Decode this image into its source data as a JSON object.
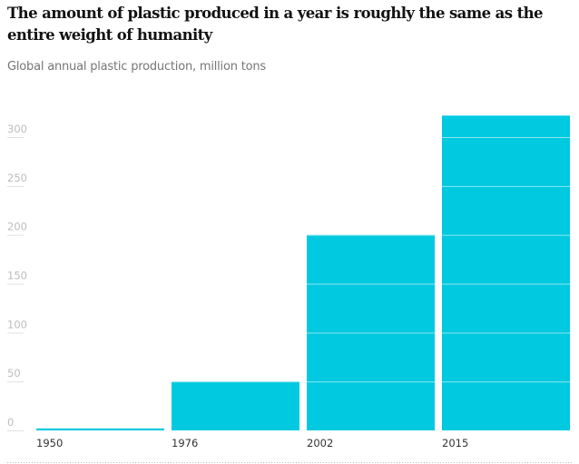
{
  "header": {
    "title": "The amount of plastic produced in a year is roughly the same as the entire weight of humanity",
    "subtitle": "Global annual plastic production, million tons"
  },
  "colors": {
    "bar": "#00c9e0",
    "grid": "#e0e0e0",
    "tick_text": "#bdbdbd"
  },
  "chart_data": {
    "type": "bar",
    "title": "The amount of plastic produced in a year is roughly the same as the entire weight of humanity",
    "subtitle": "Global annual plastic production, million tons",
    "categories": [
      "1950",
      "1976",
      "2002",
      "2015"
    ],
    "values": [
      2,
      50,
      200,
      322
    ],
    "xlabel": "",
    "ylabel": "",
    "ylim": [
      0,
      300
    ],
    "yticks": [
      "0",
      "50",
      "100",
      "150",
      "200",
      "250",
      "300"
    ],
    "grid": true,
    "legend": "none"
  }
}
